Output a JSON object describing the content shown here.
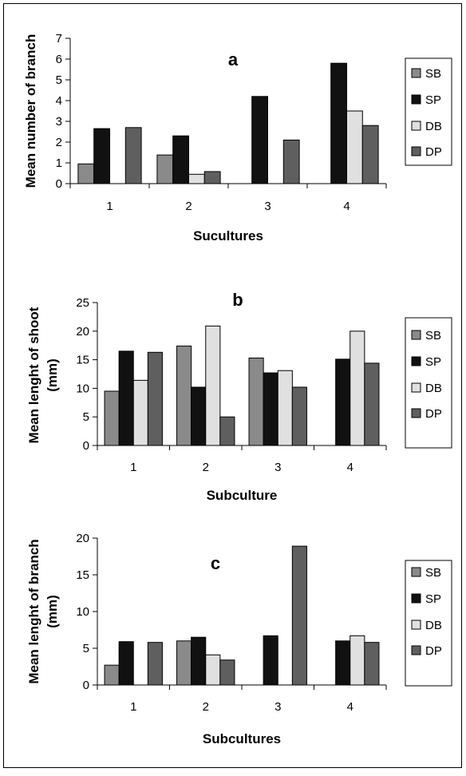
{
  "colors": {
    "SB": "#8a8a8a",
    "SP": "#111111",
    "DB": "#e0e0e0",
    "DP": "#5f5f5f"
  },
  "chart_data": [
    {
      "type": "bar",
      "panel": "a",
      "categories": [
        "1",
        "2",
        "3",
        "4"
      ],
      "series": [
        {
          "name": "SB",
          "values": [
            0.95,
            1.38,
            null,
            null
          ]
        },
        {
          "name": "SP",
          "values": [
            2.65,
            2.3,
            4.2,
            5.8
          ]
        },
        {
          "name": "DB",
          "values": [
            null,
            0.45,
            null,
            3.5
          ]
        },
        {
          "name": "DP",
          "values": [
            2.7,
            0.58,
            2.1,
            2.8
          ]
        }
      ],
      "ylabel": "Mean number of branch",
      "xlabel": "Sucultures",
      "ylim": [
        0,
        7
      ],
      "yticks": [
        0,
        1,
        2,
        3,
        4,
        5,
        6,
        7
      ],
      "legend": "right",
      "grid": false
    },
    {
      "type": "bar",
      "panel": "b",
      "categories": [
        "1",
        "2",
        "3",
        "4"
      ],
      "series": [
        {
          "name": "SB",
          "values": [
            9.5,
            17.4,
            15.3,
            null
          ]
        },
        {
          "name": "SP",
          "values": [
            16.5,
            10.2,
            12.7,
            15.1
          ]
        },
        {
          "name": "DB",
          "values": [
            11.4,
            20.9,
            13.1,
            20.0
          ]
        },
        {
          "name": "DP",
          "values": [
            16.3,
            5.0,
            10.2,
            14.4
          ]
        }
      ],
      "ylabel_lines": [
        "Mean lenght of shoot",
        "(mm)"
      ],
      "xlabel": "Subculture",
      "ylim": [
        0,
        25
      ],
      "yticks": [
        0,
        5,
        10,
        15,
        20,
        25
      ],
      "legend": "right",
      "grid": false
    },
    {
      "type": "bar",
      "panel": "c",
      "categories": [
        "1",
        "2",
        "3",
        "4"
      ],
      "series": [
        {
          "name": "SB",
          "values": [
            2.7,
            6.0,
            null,
            null
          ]
        },
        {
          "name": "SP",
          "values": [
            5.9,
            6.5,
            6.7,
            6.0
          ]
        },
        {
          "name": "DB",
          "values": [
            null,
            4.1,
            null,
            6.7
          ]
        },
        {
          "name": "DP",
          "values": [
            5.8,
            3.4,
            18.9,
            5.8
          ]
        }
      ],
      "ylabel_lines": [
        "Mean lenght of branch",
        "(mm)"
      ],
      "xlabel": "Subcultures",
      "ylim": [
        0,
        20
      ],
      "yticks": [
        0,
        5,
        10,
        15,
        20
      ],
      "legend": "right",
      "grid": false
    }
  ]
}
